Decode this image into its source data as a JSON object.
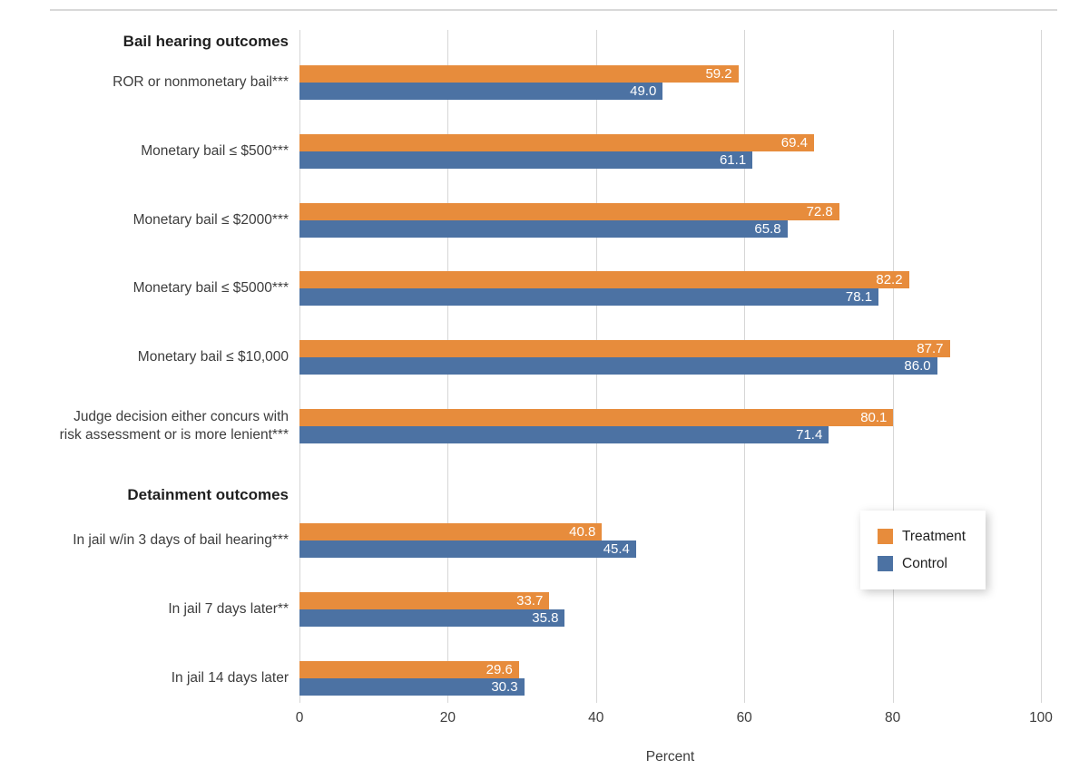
{
  "chart_data": {
    "type": "bar",
    "orientation": "horizontal",
    "title": "",
    "xlabel": "Percent",
    "ylabel": "",
    "xlim": [
      0,
      100
    ],
    "xticks": [
      "0",
      "20",
      "40",
      "60",
      "80",
      "100"
    ],
    "grid": "vertical",
    "legend_position": "floating-right",
    "legend": [
      {
        "label": "Treatment",
        "color": "#E78C3C"
      },
      {
        "label": "Control",
        "color": "#4C72A3"
      }
    ],
    "series_names": [
      "Treatment",
      "Control"
    ],
    "groups": [
      {
        "header": "Bail hearing outcomes",
        "items": [
          {
            "label": "ROR or nonmonetary bail***",
            "values": [
              59.2,
              49.0
            ]
          },
          {
            "label": "Monetary bail ≤ $500***",
            "values": [
              69.4,
              61.1
            ]
          },
          {
            "label": "Monetary bail ≤ $2000***",
            "values": [
              72.8,
              65.8
            ]
          },
          {
            "label": "Monetary bail ≤ $5000***",
            "values": [
              82.2,
              78.1
            ]
          },
          {
            "label": "Monetary bail ≤ $10,000",
            "values": [
              87.7,
              86.0
            ]
          },
          {
            "label": "Judge decision either concurs with\nrisk assessment or is more lenient***",
            "values": [
              80.1,
              71.4
            ]
          }
        ]
      },
      {
        "header": "Detainment outcomes",
        "items": [
          {
            "label": "In jail w/in 3 days of bail hearing***",
            "values": [
              40.8,
              45.4
            ]
          },
          {
            "label": "In jail 7 days later**",
            "values": [
              33.7,
              35.8
            ]
          },
          {
            "label": "In jail 14 days later",
            "values": [
              29.6,
              30.3
            ]
          }
        ]
      }
    ],
    "colors": {
      "gridline": "#d6d6d6",
      "label_text": "#3d3d3d",
      "header_text": "#1f1f1f",
      "value_text": "#ffffff"
    }
  }
}
